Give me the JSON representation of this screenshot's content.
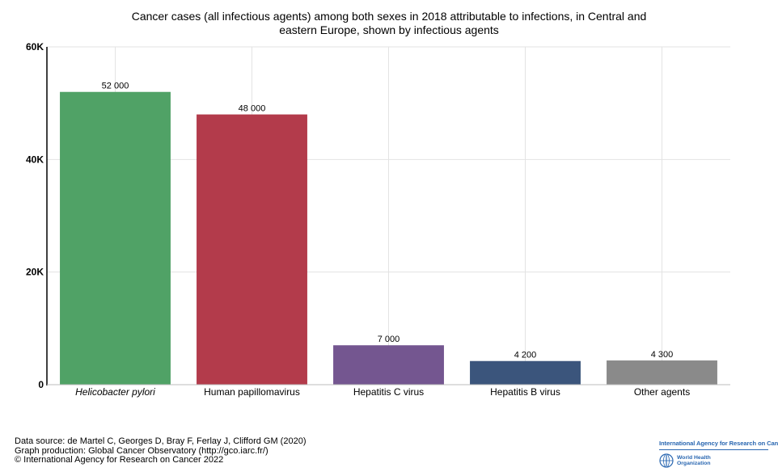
{
  "chart_data": {
    "type": "bar",
    "title": "Cancer cases (all infectious agents) among both sexes in 2018 attributable to infections, in Central and eastern Europe, shown by infectious agents",
    "title_lines": [
      "Cancer cases (all infectious agents) among both sexes in 2018 attributable to infections, in Central and",
      "eastern Europe, shown by infectious agents"
    ],
    "xlabel": "",
    "ylabel": "",
    "ylim": [
      0,
      60000
    ],
    "yticks": [
      0,
      20000,
      40000,
      60000
    ],
    "ytick_labels": [
      "0",
      "20K",
      "40K",
      "60K"
    ],
    "grid": true,
    "categories": [
      "Helicobacter pylori",
      "Human papillomavirus",
      "Hepatitis C virus",
      "Hepatitis B virus",
      "Other agents"
    ],
    "values": [
      52000,
      48000,
      7000,
      4200,
      4300
    ],
    "value_labels": [
      "52 000",
      "48 000",
      "7 000",
      "4 200",
      "4 300"
    ],
    "colors": [
      "#50a266",
      "#b33b4b",
      "#745690",
      "#3b557c",
      "#8a8a8a"
    ],
    "italic_categories": [
      "Helicobacter pylori"
    ]
  },
  "footer": {
    "source_lines": [
      "Data source: de Martel C, Georges D, Bray F, Ferlay J, Clifford GM (2020)",
      "Graph production: Global Cancer Observatory (http://gco.iarc.fr/)",
      "© International Agency for Research on Cancer 2022"
    ]
  },
  "logos": {
    "iarc_text": "International Agency for Research on Cancer",
    "who_line1": "World Health",
    "who_line2": "Organization",
    "accent": "#2a67b1"
  }
}
